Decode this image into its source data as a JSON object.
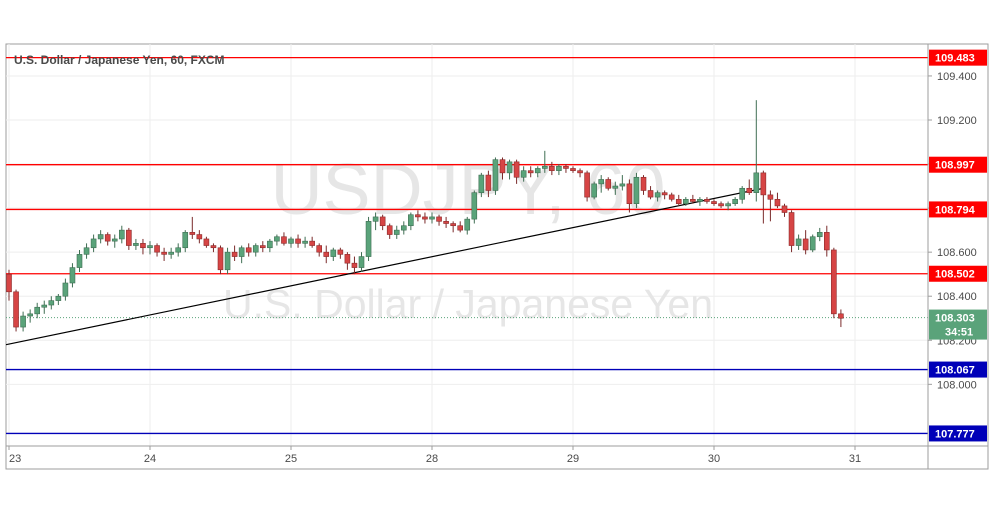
{
  "header": {
    "symbol_line": "U.S. Dollar / Japanese Yen, 60, FXCM"
  },
  "watermark": {
    "ticker": "USDJPY, 60",
    "name": "U.S. Dollar / Japanese Yen"
  },
  "colors": {
    "up_candle": "#5aa37a",
    "down_candle": "#d64545",
    "resistance_line": "#ff0000",
    "support_line": "#0000b8",
    "trend_line": "#000000",
    "price_tag": "#5aa37a",
    "grid": "#eeeeee"
  },
  "chart_data": {
    "type": "candlestick",
    "title": "U.S. Dollar / Japanese Yen, 60, FXCM",
    "xlabel": "",
    "ylabel": "",
    "ylim": [
      107.72,
      109.545
    ],
    "y_ticks": [
      108.0,
      108.2,
      108.4,
      108.6,
      108.8,
      109.0,
      109.2,
      109.4
    ],
    "y_tick_labels": [
      "108.000",
      "108.200",
      "108.400",
      "108.600",
      "108.800",
      "109.000",
      "109.200",
      "109.400"
    ],
    "x_tick_labels": [
      "23",
      "24",
      "25",
      "28",
      "29",
      "30",
      "31"
    ],
    "x_tick_positions": [
      0,
      20,
      40,
      60,
      80,
      100,
      120
    ],
    "grid": true,
    "horizontal_lines": [
      {
        "value": 109.483,
        "label": "109.483",
        "kind": "resistance"
      },
      {
        "value": 108.997,
        "label": "108.997",
        "kind": "resistance"
      },
      {
        "value": 108.794,
        "label": "108.794",
        "kind": "resistance"
      },
      {
        "value": 108.502,
        "label": "108.502",
        "kind": "resistance"
      },
      {
        "value": 108.067,
        "label": "108.067",
        "kind": "support"
      },
      {
        "value": 107.777,
        "label": "107.777",
        "kind": "support"
      }
    ],
    "trend_line": {
      "from": [
        0,
        108.18
      ],
      "to": [
        107,
        108.89
      ]
    },
    "last_price": {
      "value": 108.303,
      "label": "108.303",
      "countdown": "34:51"
    },
    "candles_ohlc": [
      [
        108.5,
        108.52,
        108.38,
        108.42
      ],
      [
        108.42,
        108.43,
        108.24,
        108.26
      ],
      [
        108.26,
        108.33,
        108.24,
        108.31
      ],
      [
        108.31,
        108.34,
        108.28,
        108.32
      ],
      [
        108.32,
        108.37,
        108.3,
        108.35
      ],
      [
        108.35,
        108.38,
        108.32,
        108.36
      ],
      [
        108.36,
        108.4,
        108.34,
        108.38
      ],
      [
        108.38,
        108.41,
        108.36,
        108.4
      ],
      [
        108.4,
        108.48,
        108.38,
        108.46
      ],
      [
        108.46,
        108.55,
        108.44,
        108.53
      ],
      [
        108.53,
        108.61,
        108.51,
        108.59
      ],
      [
        108.59,
        108.64,
        108.57,
        108.62
      ],
      [
        108.62,
        108.68,
        108.6,
        108.66
      ],
      [
        108.66,
        108.7,
        108.64,
        108.68
      ],
      [
        108.68,
        108.69,
        108.63,
        108.65
      ],
      [
        108.65,
        108.68,
        108.62,
        108.66
      ],
      [
        108.66,
        108.72,
        108.64,
        108.7
      ],
      [
        108.7,
        108.71,
        108.61,
        108.63
      ],
      [
        108.63,
        108.66,
        108.61,
        108.64
      ],
      [
        108.64,
        108.66,
        108.59,
        108.62
      ],
      [
        108.62,
        108.65,
        108.59,
        108.63
      ],
      [
        108.63,
        108.64,
        108.58,
        108.6
      ],
      [
        108.6,
        108.62,
        108.56,
        108.59
      ],
      [
        108.59,
        108.62,
        108.57,
        108.6
      ],
      [
        108.6,
        108.64,
        108.58,
        108.62
      ],
      [
        108.62,
        108.7,
        108.6,
        108.69
      ],
      [
        108.69,
        108.76,
        108.66,
        108.68
      ],
      [
        108.68,
        108.7,
        108.64,
        108.66
      ],
      [
        108.66,
        108.67,
        108.62,
        108.63
      ],
      [
        108.63,
        108.64,
        108.6,
        108.62
      ],
      [
        108.62,
        108.63,
        108.5,
        108.52
      ],
      [
        108.52,
        108.62,
        108.5,
        108.6
      ],
      [
        108.6,
        108.63,
        108.56,
        108.58
      ],
      [
        108.58,
        108.63,
        108.55,
        108.62
      ],
      [
        108.62,
        108.64,
        108.58,
        108.6
      ],
      [
        108.6,
        108.64,
        108.58,
        108.63
      ],
      [
        108.63,
        108.65,
        108.6,
        108.62
      ],
      [
        108.62,
        108.66,
        108.6,
        108.65
      ],
      [
        108.65,
        108.68,
        108.63,
        108.67
      ],
      [
        108.67,
        108.69,
        108.63,
        108.64
      ],
      [
        108.64,
        108.67,
        108.62,
        108.66
      ],
      [
        108.66,
        108.68,
        108.62,
        108.64
      ],
      [
        108.64,
        108.67,
        108.62,
        108.65
      ],
      [
        108.65,
        108.67,
        108.62,
        108.63
      ],
      [
        108.63,
        108.64,
        108.58,
        108.6
      ],
      [
        108.6,
        108.63,
        108.55,
        108.58
      ],
      [
        108.58,
        108.62,
        108.56,
        108.61
      ],
      [
        108.61,
        108.62,
        108.57,
        108.59
      ],
      [
        108.59,
        108.6,
        108.52,
        108.55
      ],
      [
        108.55,
        108.58,
        108.5,
        108.53
      ],
      [
        108.53,
        108.6,
        108.51,
        108.58
      ],
      [
        108.58,
        108.76,
        108.56,
        108.74
      ],
      [
        108.74,
        108.78,
        108.7,
        108.76
      ],
      [
        108.76,
        108.77,
        108.7,
        108.72
      ],
      [
        108.72,
        108.73,
        108.66,
        108.68
      ],
      [
        108.68,
        108.72,
        108.66,
        108.7
      ],
      [
        108.7,
        108.74,
        108.68,
        108.72
      ],
      [
        108.72,
        108.78,
        108.7,
        108.77
      ],
      [
        108.77,
        108.79,
        108.74,
        108.76
      ],
      [
        108.76,
        108.78,
        108.73,
        108.75
      ],
      [
        108.75,
        108.78,
        108.73,
        108.76
      ],
      [
        108.76,
        108.77,
        108.72,
        108.74
      ],
      [
        108.74,
        108.76,
        108.71,
        108.73
      ],
      [
        108.73,
        108.74,
        108.69,
        108.72
      ],
      [
        108.72,
        108.74,
        108.69,
        108.7
      ],
      [
        108.7,
        108.76,
        108.68,
        108.75
      ],
      [
        108.75,
        108.88,
        108.73,
        108.87
      ],
      [
        108.87,
        108.96,
        108.85,
        108.95
      ],
      [
        108.95,
        108.97,
        108.85,
        108.88
      ],
      [
        108.88,
        109.03,
        108.86,
        109.02
      ],
      [
        109.02,
        109.03,
        108.93,
        108.96
      ],
      [
        108.96,
        109.02,
        108.93,
        109.01
      ],
      [
        109.01,
        109.02,
        108.91,
        108.94
      ],
      [
        108.94,
        108.99,
        108.92,
        108.97
      ],
      [
        108.97,
        108.99,
        108.94,
        108.96
      ],
      [
        108.96,
        108.99,
        108.94,
        108.98
      ],
      [
        108.98,
        109.06,
        108.96,
        108.99
      ],
      [
        108.99,
        109.01,
        108.95,
        108.97
      ],
      [
        108.97,
        109.0,
        108.95,
        108.99
      ],
      [
        108.99,
        109.0,
        108.96,
        108.98
      ],
      [
        108.98,
        108.99,
        108.96,
        108.97
      ],
      [
        108.97,
        108.98,
        108.94,
        108.96
      ],
      [
        108.96,
        108.97,
        108.83,
        108.85
      ],
      [
        108.85,
        108.92,
        108.84,
        108.91
      ],
      [
        108.91,
        108.95,
        108.87,
        108.93
      ],
      [
        108.93,
        108.94,
        108.88,
        108.89
      ],
      [
        108.89,
        108.92,
        108.86,
        108.9
      ],
      [
        108.9,
        108.95,
        108.88,
        108.91
      ],
      [
        108.91,
        108.93,
        108.78,
        108.82
      ],
      [
        108.82,
        108.96,
        108.8,
        108.94
      ],
      [
        108.94,
        108.95,
        108.86,
        108.88
      ],
      [
        108.88,
        108.9,
        108.84,
        108.85
      ],
      [
        108.85,
        108.88,
        108.83,
        108.87
      ],
      [
        108.87,
        108.88,
        108.84,
        108.86
      ],
      [
        108.86,
        108.87,
        108.83,
        108.84
      ],
      [
        108.84,
        108.86,
        108.81,
        108.82
      ],
      [
        108.82,
        108.85,
        108.81,
        108.84
      ],
      [
        108.84,
        108.86,
        108.82,
        108.83
      ],
      [
        108.83,
        108.85,
        108.81,
        108.84
      ],
      [
        108.84,
        108.85,
        108.82,
        108.83
      ],
      [
        108.83,
        108.84,
        108.81,
        108.82
      ],
      [
        108.82,
        108.83,
        108.8,
        108.81
      ],
      [
        108.81,
        108.83,
        108.79,
        108.82
      ],
      [
        108.82,
        108.85,
        108.81,
        108.84
      ],
      [
        108.84,
        108.9,
        108.82,
        108.89
      ],
      [
        108.89,
        108.93,
        108.86,
        108.87
      ],
      [
        108.87,
        109.29,
        108.83,
        108.96
      ],
      [
        108.96,
        108.97,
        108.73,
        108.86
      ],
      [
        108.86,
        108.88,
        108.74,
        108.84
      ],
      [
        108.84,
        108.87,
        108.8,
        108.81
      ],
      [
        108.81,
        108.82,
        108.76,
        108.78
      ],
      [
        108.78,
        108.79,
        108.6,
        108.63
      ],
      [
        108.63,
        108.68,
        108.61,
        108.66
      ],
      [
        108.66,
        108.7,
        108.59,
        108.61
      ],
      [
        108.61,
        108.68,
        108.6,
        108.67
      ],
      [
        108.67,
        108.71,
        108.65,
        108.69
      ],
      [
        108.69,
        108.72,
        108.58,
        108.61
      ],
      [
        108.61,
        108.62,
        108.3,
        108.32
      ],
      [
        108.32,
        108.34,
        108.26,
        108.3
      ]
    ]
  }
}
